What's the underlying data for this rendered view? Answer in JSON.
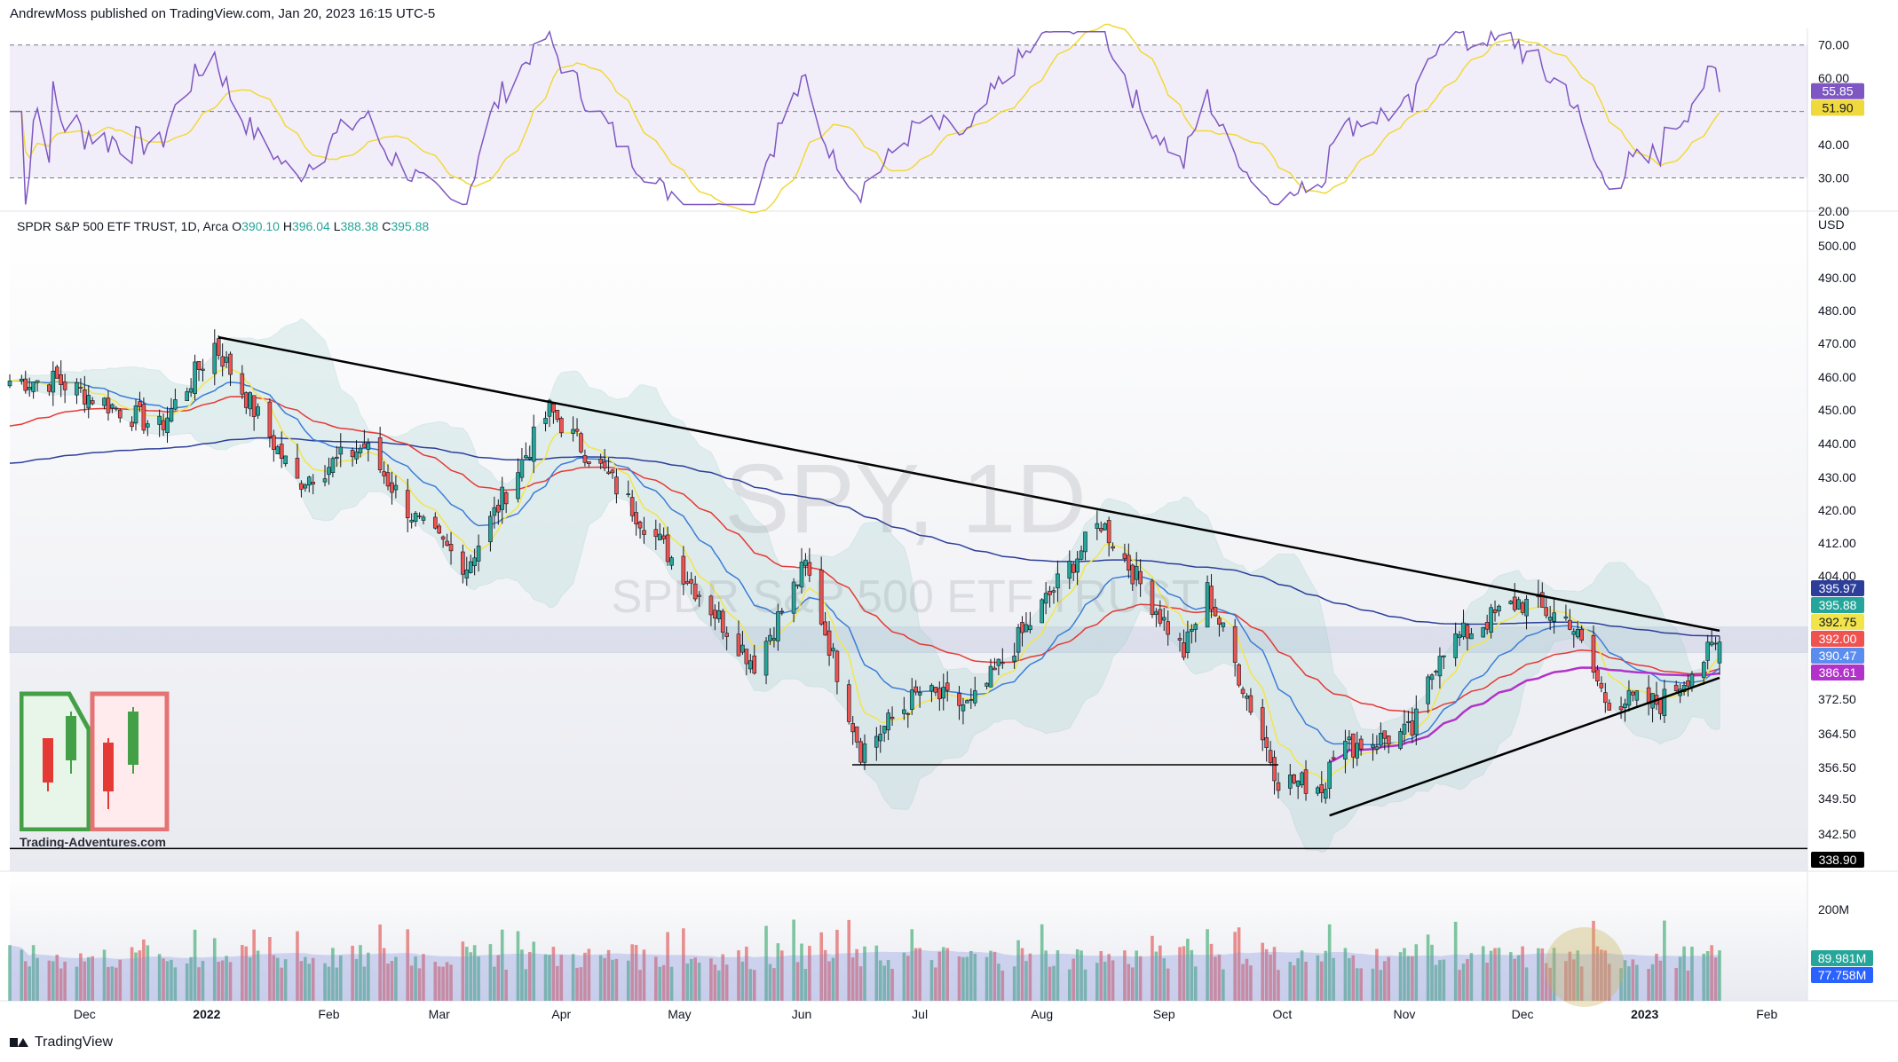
{
  "header": {
    "publish_line": "AndrewMoss published on TradingView.com, Jan 20, 2023 16:15 UTC-5"
  },
  "footer": {
    "brand": "TradingView"
  },
  "logo": {
    "text": "Trading-Adventures.com"
  },
  "colors": {
    "up": "#26a69a",
    "down": "#ef5350",
    "ema8": "#f2e54b",
    "ema21": "#3b7dd8",
    "ema50": "#e53935",
    "ema200": "#2c3e99",
    "vwap": "#b133c9",
    "rsi": "#7e57c2",
    "rsi_ma": "#f0d93c",
    "bb": "#7fbfbf"
  },
  "rsi": {
    "labels": {
      "current": "55.85",
      "ma": "51.90"
    },
    "ticks": [
      "70.00",
      "60.00",
      "50.00",
      "40.00",
      "30.00",
      "20.00"
    ],
    "levels": {
      "upper": 70,
      "mid": 50,
      "lower": 30
    }
  },
  "main": {
    "legend": "SPDR S&P 500 ETF TRUST, 1D, Arca",
    "ohlc": {
      "o_label": "O",
      "o": "390.10",
      "h_label": "H",
      "h": "396.04",
      "l_label": "L",
      "l": "388.38",
      "c_label": "C",
      "c": "395.88"
    },
    "watermark_symbol": "SPY, 1D",
    "watermark_name": "SPDR S&P 500 ETF TRUST",
    "currency": "USD",
    "price_ticks": [
      "500.00",
      "490.00",
      "480.00",
      "470.00",
      "460.00",
      "450.00",
      "440.00",
      "430.00",
      "420.00",
      "412.00",
      "404.00",
      "372.50",
      "364.50",
      "356.50",
      "349.50",
      "342.50"
    ],
    "price_badges": [
      {
        "value": "395.97",
        "color": "#2c3e99",
        "text": "#ffffff"
      },
      {
        "value": "395.88",
        "color": "#26a69a",
        "text": "#ffffff"
      },
      {
        "value": "392.75",
        "color": "#f2e54b",
        "text": "#131722"
      },
      {
        "value": "392.00",
        "color": "#ef5350",
        "text": "#ffffff"
      },
      {
        "value": "390.47",
        "color": "#5b8def",
        "text": "#ffffff"
      },
      {
        "value": "386.61",
        "color": "#b133c9",
        "text": "#ffffff"
      }
    ],
    "support_label": "338.90"
  },
  "volume": {
    "ticks": [
      "200M"
    ],
    "badges": [
      {
        "value": "89.981M",
        "color": "#26a69a"
      },
      {
        "value": "77.758M",
        "color": "#2962ff"
      }
    ]
  },
  "x_axis": {
    "labels": [
      "Dec",
      "2022",
      "Feb",
      "Mar",
      "Apr",
      "May",
      "Jun",
      "Jul",
      "Aug",
      "Sep",
      "Oct",
      "Nov",
      "Dec",
      "2023",
      "Feb"
    ]
  },
  "chart_data": {
    "type": "candlestick",
    "symbol": "SPY",
    "timeframe": "1D",
    "x_labels": [
      "Dec",
      "2022",
      "Feb",
      "Mar",
      "Apr",
      "May",
      "Jun",
      "Jul",
      "Aug",
      "Sep",
      "Oct",
      "Nov",
      "Dec",
      "2023",
      "Feb"
    ],
    "close_path_approx": [
      {
        "x": "2021-11-24",
        "close": 468
      },
      {
        "x": "2021-12-20",
        "close": 455
      },
      {
        "x": "2022-01-03",
        "close": 478
      },
      {
        "x": "2022-01-24",
        "close": 440
      },
      {
        "x": "2022-02-10",
        "close": 450
      },
      {
        "x": "2022-02-24",
        "close": 428
      },
      {
        "x": "2022-03-08",
        "close": 417
      },
      {
        "x": "2022-03-29",
        "close": 460
      },
      {
        "x": "2022-04-14",
        "close": 440
      },
      {
        "x": "2022-05-02",
        "close": 415
      },
      {
        "x": "2022-05-20",
        "close": 390
      },
      {
        "x": "2022-06-02",
        "close": 417
      },
      {
        "x": "2022-06-16",
        "close": 366
      },
      {
        "x": "2022-07-01",
        "close": 382
      },
      {
        "x": "2022-07-14",
        "close": 378
      },
      {
        "x": "2022-08-16",
        "close": 429
      },
      {
        "x": "2022-09-06",
        "close": 393
      },
      {
        "x": "2022-09-12",
        "close": 410
      },
      {
        "x": "2022-09-30",
        "close": 358
      },
      {
        "x": "2022-10-12",
        "close": 356
      },
      {
        "x": "2022-10-13",
        "close": 366
      },
      {
        "x": "2022-11-03",
        "close": 371
      },
      {
        "x": "2022-11-10",
        "close": 394
      },
      {
        "x": "2022-11-30",
        "close": 407
      },
      {
        "x": "2022-12-13",
        "close": 402
      },
      {
        "x": "2022-12-22",
        "close": 380
      },
      {
        "x": "2023-01-05",
        "close": 379
      },
      {
        "x": "2023-01-20",
        "close": 395.88
      }
    ],
    "last_bar": {
      "open": 390.1,
      "high": 396.04,
      "low": 388.38,
      "close": 395.88
    },
    "indicators": {
      "ema200": 395.97,
      "ema8": 392.75,
      "ema50": 392.0,
      "ema21": 390.47,
      "vwap": 386.61
    },
    "rsi": {
      "value": 55.85,
      "ma": 51.9,
      "levels": [
        70,
        50,
        30
      ],
      "ylim": [
        20,
        75
      ]
    },
    "volume_last": "89.981M",
    "volume_ma": "77.758M",
    "trendlines": [
      {
        "from": {
          "x": "2022-01-04",
          "y": 480
        },
        "to": {
          "x": "2023-01-20",
          "y": 399
        }
      },
      {
        "from": {
          "x": "2022-10-13",
          "y": 348
        },
        "to": {
          "x": "2023-01-20",
          "y": 386
        }
      }
    ],
    "horizontal_lines": [
      {
        "y": 362
      },
      {
        "y": 338.9
      }
    ],
    "ylim": [
      338,
      505
    ]
  }
}
